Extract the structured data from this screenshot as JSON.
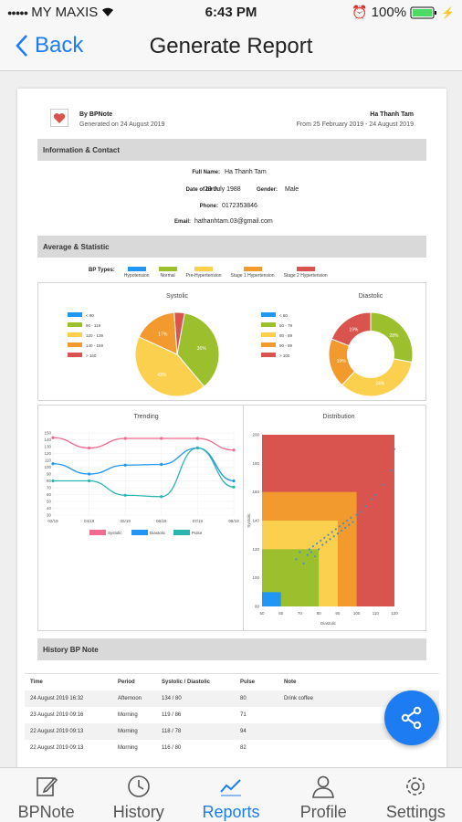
{
  "status": {
    "carrier": "MY MAXIS",
    "time": "6:43 PM",
    "battery": "100%"
  },
  "nav": {
    "back_label": "Back",
    "title": "Generate Report"
  },
  "report": {
    "brand": "By BPNote",
    "generated": "Generated on 24 August 2019",
    "patient_name": "Ha Thanh Tam",
    "period": "From 25 February 2019 - 24 August 2019",
    "sec_info": "Information & Contact",
    "info": {
      "fullname_label": "Full Name:",
      "fullname": "Ha Thanh Tam",
      "dob_label": "Date of birth:",
      "dob": "29 July 1988",
      "gender_label": "Gender:",
      "gender": "Male",
      "phone_label": "Phone:",
      "phone": "0172353846",
      "email_label": "Email:",
      "email": "hathanhtam.03@gmail.com"
    },
    "sec_stats": "Average & Statistic",
    "bp_types_label": "BP Types:",
    "bp_types": [
      {
        "label": "Hypotension",
        "color": "#2196f3"
      },
      {
        "label": "Normal",
        "color": "#9cbf2e"
      },
      {
        "label": "Pre-Hypertension",
        "color": "#fcd04f"
      },
      {
        "label": "Stage 1 Hypertension",
        "color": "#f39a2e"
      },
      {
        "label": "Stage 2 Hypertension",
        "color": "#d9534f"
      }
    ],
    "sec_history": "History BP Note"
  },
  "chart_data": [
    {
      "type": "pie",
      "title": "Systolic",
      "legend": [
        "< 90",
        "90 - 119",
        "120 - 139",
        "140 - 159",
        "> 160"
      ],
      "colors": [
        "#2196f3",
        "#9cbf2e",
        "#fcd04f",
        "#f39a2e",
        "#d9534f"
      ],
      "values": [
        0,
        36,
        43,
        17,
        4
      ],
      "labels": [
        "",
        "36%",
        "43%",
        "17%",
        ""
      ]
    },
    {
      "type": "pie",
      "title": "Diastolic",
      "legend": [
        "< 60",
        "60 - 79",
        "80 - 89",
        "90 - 99",
        "> 100"
      ],
      "colors": [
        "#2196f3",
        "#9cbf2e",
        "#fcd04f",
        "#f39a2e",
        "#d9534f"
      ],
      "values": [
        0,
        28,
        34,
        19,
        19
      ],
      "labels": [
        "",
        "28%",
        "34%",
        "19%",
        "19%"
      ]
    },
    {
      "type": "line",
      "title": "Trending",
      "x": [
        "02/19",
        "04/19",
        "05/19",
        "06/19",
        "07/19",
        "08/19"
      ],
      "ylim": [
        30,
        150
      ],
      "yticks": [
        30,
        40,
        50,
        60,
        70,
        80,
        90,
        100,
        110,
        120,
        130,
        140,
        150
      ],
      "series": [
        {
          "name": "Systolic",
          "color": "#f06b8f",
          "values": [
            143,
            128,
            142,
            142,
            142,
            125
          ]
        },
        {
          "name": "Diastolic",
          "color": "#2196f3",
          "values": [
            105,
            90,
            103,
            104,
            128,
            80
          ]
        },
        {
          "name": "Pulse",
          "color": "#2bb5b0",
          "values": [
            80,
            80,
            59,
            57,
            128,
            71
          ]
        }
      ]
    },
    {
      "type": "scatter",
      "title": "Distribution",
      "xlabel": "Diastolic",
      "ylabel": "Systolic",
      "xlim": [
        50,
        120
      ],
      "ylim": [
        80,
        200
      ],
      "xticks": [
        50,
        60,
        70,
        80,
        90,
        100,
        110,
        120
      ],
      "yticks": [
        80,
        100,
        120,
        140,
        160,
        180,
        200
      ],
      "regions": [
        {
          "x": [
            50,
            120
          ],
          "y": [
            80,
            200
          ],
          "color": "#d9534f"
        },
        {
          "x": [
            50,
            100
          ],
          "y": [
            80,
            160
          ],
          "color": "#f39a2e"
        },
        {
          "x": [
            50,
            90
          ],
          "y": [
            80,
            140
          ],
          "color": "#fcd04f"
        },
        {
          "x": [
            50,
            80
          ],
          "y": [
            80,
            120
          ],
          "color": "#9cbf2e"
        },
        {
          "x": [
            50,
            60
          ],
          "y": [
            80,
            90
          ],
          "color": "#2196f3"
        }
      ],
      "points": [
        [
          68,
          113
        ],
        [
          70,
          118
        ],
        [
          72,
          110
        ],
        [
          74,
          116
        ],
        [
          75,
          120
        ],
        [
          76,
          118
        ],
        [
          77,
          122
        ],
        [
          78,
          115
        ],
        [
          79,
          124
        ],
        [
          80,
          120
        ],
        [
          81,
          126
        ],
        [
          82,
          123
        ],
        [
          83,
          128
        ],
        [
          84,
          125
        ],
        [
          85,
          130
        ],
        [
          86,
          127
        ],
        [
          87,
          132
        ],
        [
          88,
          129
        ],
        [
          89,
          134
        ],
        [
          90,
          131
        ],
        [
          91,
          136
        ],
        [
          92,
          133
        ],
        [
          93,
          138
        ],
        [
          94,
          135
        ],
        [
          95,
          140
        ],
        [
          96,
          137
        ],
        [
          97,
          142
        ],
        [
          98,
          139
        ],
        [
          100,
          144
        ],
        [
          102,
          146
        ],
        [
          105,
          150
        ],
        [
          108,
          155
        ],
        [
          110,
          158
        ],
        [
          114,
          165
        ],
        [
          118,
          175
        ],
        [
          120,
          190
        ]
      ],
      "point_color": "#4a8fc4"
    }
  ],
  "history": {
    "headers": [
      "Time",
      "Period",
      "Systolic / Diastolic",
      "Pulse",
      "Note"
    ],
    "rows": [
      [
        "24 August 2019 16:32",
        "Afternoon",
        "134 / 80",
        "80",
        "Drink coffee"
      ],
      [
        "23 August 2019 09:16",
        "Morning",
        "119 / 86",
        "71",
        ""
      ],
      [
        "22 August 2019 09:13",
        "Morning",
        "118 / 78",
        "94",
        ""
      ],
      [
        "22 August 2019 09:13",
        "Morning",
        "116 / 80",
        "82",
        ""
      ]
    ]
  },
  "tabs": [
    {
      "label": "BPNote",
      "icon": "edit-icon"
    },
    {
      "label": "History",
      "icon": "clock-icon"
    },
    {
      "label": "Reports",
      "icon": "chart-icon"
    },
    {
      "label": "Profile",
      "icon": "person-icon"
    },
    {
      "label": "Settings",
      "icon": "gear-icon"
    }
  ],
  "active_tab": "Reports",
  "accent": "#1e7cf2"
}
